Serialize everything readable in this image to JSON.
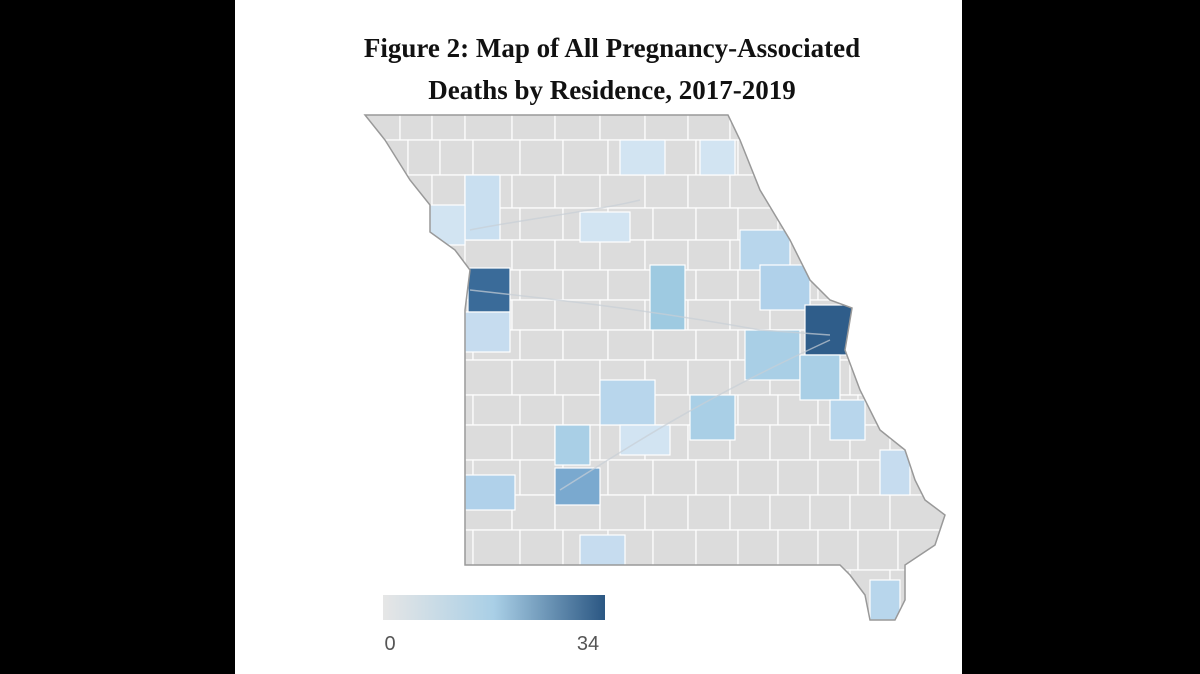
{
  "title_lines": [
    "Figure 2: Map of All Pregnancy-Associated",
    "Deaths by Residence, 2017-2019"
  ],
  "legend": {
    "min": 0,
    "max": 34,
    "colors": [
      "#e6e6e6",
      "#a9cfe6",
      "#2b5783"
    ]
  }
}
